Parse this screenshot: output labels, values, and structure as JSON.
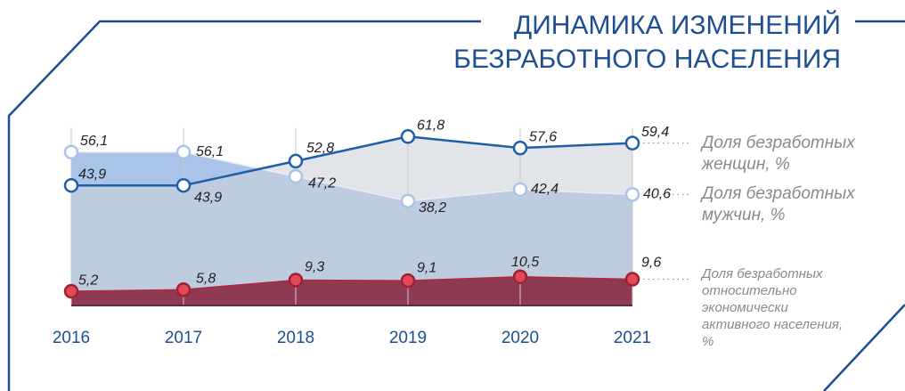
{
  "chart_data": {
    "type": "line",
    "title": "ДИНАМИКА ИЗМЕНЕНИЙ БЕЗРАБОТНОГО НАСЕЛЕНИЯ",
    "categories": [
      "2016",
      "2017",
      "2018",
      "2019",
      "2020",
      "2021"
    ],
    "ylim": [
      0,
      65
    ],
    "series": [
      {
        "name": "Доля безработных мужчин, %",
        "color": "#a9c3e8",
        "area": true,
        "values": [
          56.1,
          56.1,
          47.2,
          38.2,
          42.4,
          40.6
        ],
        "value_labels": [
          "56,1",
          "56,1",
          "47,2",
          "38,2",
          "42,4",
          "40,6"
        ]
      },
      {
        "name": "Доля безработных женщин, %",
        "color": "#1f5fa8",
        "area": true,
        "values": [
          43.9,
          43.9,
          52.8,
          61.8,
          57.6,
          59.4
        ],
        "value_labels": [
          "43,9",
          "43,9",
          "52,8",
          "61,8",
          "57,6",
          "59,4"
        ]
      },
      {
        "name": "Доля безработных относительно экономически активного населения, %",
        "color": "#e04a5a",
        "area": true,
        "values": [
          5.2,
          5.8,
          9.3,
          9.1,
          10.5,
          9.6
        ],
        "value_labels": [
          "5,2",
          "5,8",
          "9,3",
          "9,1",
          "10,5",
          "9,6"
        ]
      }
    ]
  }
}
